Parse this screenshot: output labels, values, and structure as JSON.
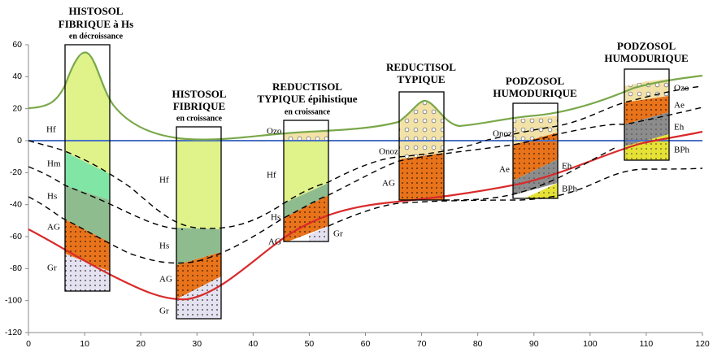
{
  "axes": {
    "xlim": [
      0,
      120
    ],
    "ylim": [
      -120,
      60
    ],
    "xticks": [
      0,
      10,
      20,
      30,
      40,
      50,
      60,
      70,
      80,
      90,
      100,
      110,
      120
    ],
    "yticks": [
      -120,
      -100,
      -80,
      -60,
      -40,
      -20,
      0,
      20,
      40,
      60
    ]
  },
  "profiles": [
    {
      "title": [
        "HISTOSOL",
        "FIBRIQUE à Hs"
      ],
      "subtitle": "en décroissance",
      "horizons": [
        "Hf",
        "Hm",
        "Hs",
        "AG",
        "Gr"
      ]
    },
    {
      "title": [
        "HISTOSOL",
        "FIBRIQUE"
      ],
      "subtitle": "en croissance",
      "horizons": [
        "Hf",
        "Hs",
        "AG",
        "Gr"
      ]
    },
    {
      "title": [
        "REDUCTISOL",
        "TYPIQUE épihistique"
      ],
      "subtitle": "en croissance",
      "horizons": [
        "Ozo",
        "Hf",
        "Hs",
        "AG",
        "Gr"
      ]
    },
    {
      "title": [
        "REDUCTISOL",
        "TYPIQUE"
      ],
      "horizons": [
        "Onoz",
        "AG"
      ]
    },
    {
      "title": [
        "PODZOSOL",
        "HUMODURIQUE"
      ],
      "horizons": [
        "Onoz",
        "Ae",
        "Eh",
        "BPh"
      ]
    },
    {
      "title": [
        "PODZOSOL",
        "HUMODURIQUE"
      ],
      "horizons": [
        "Ozo",
        "Ae",
        "Eh",
        "BPh"
      ]
    }
  ]
}
